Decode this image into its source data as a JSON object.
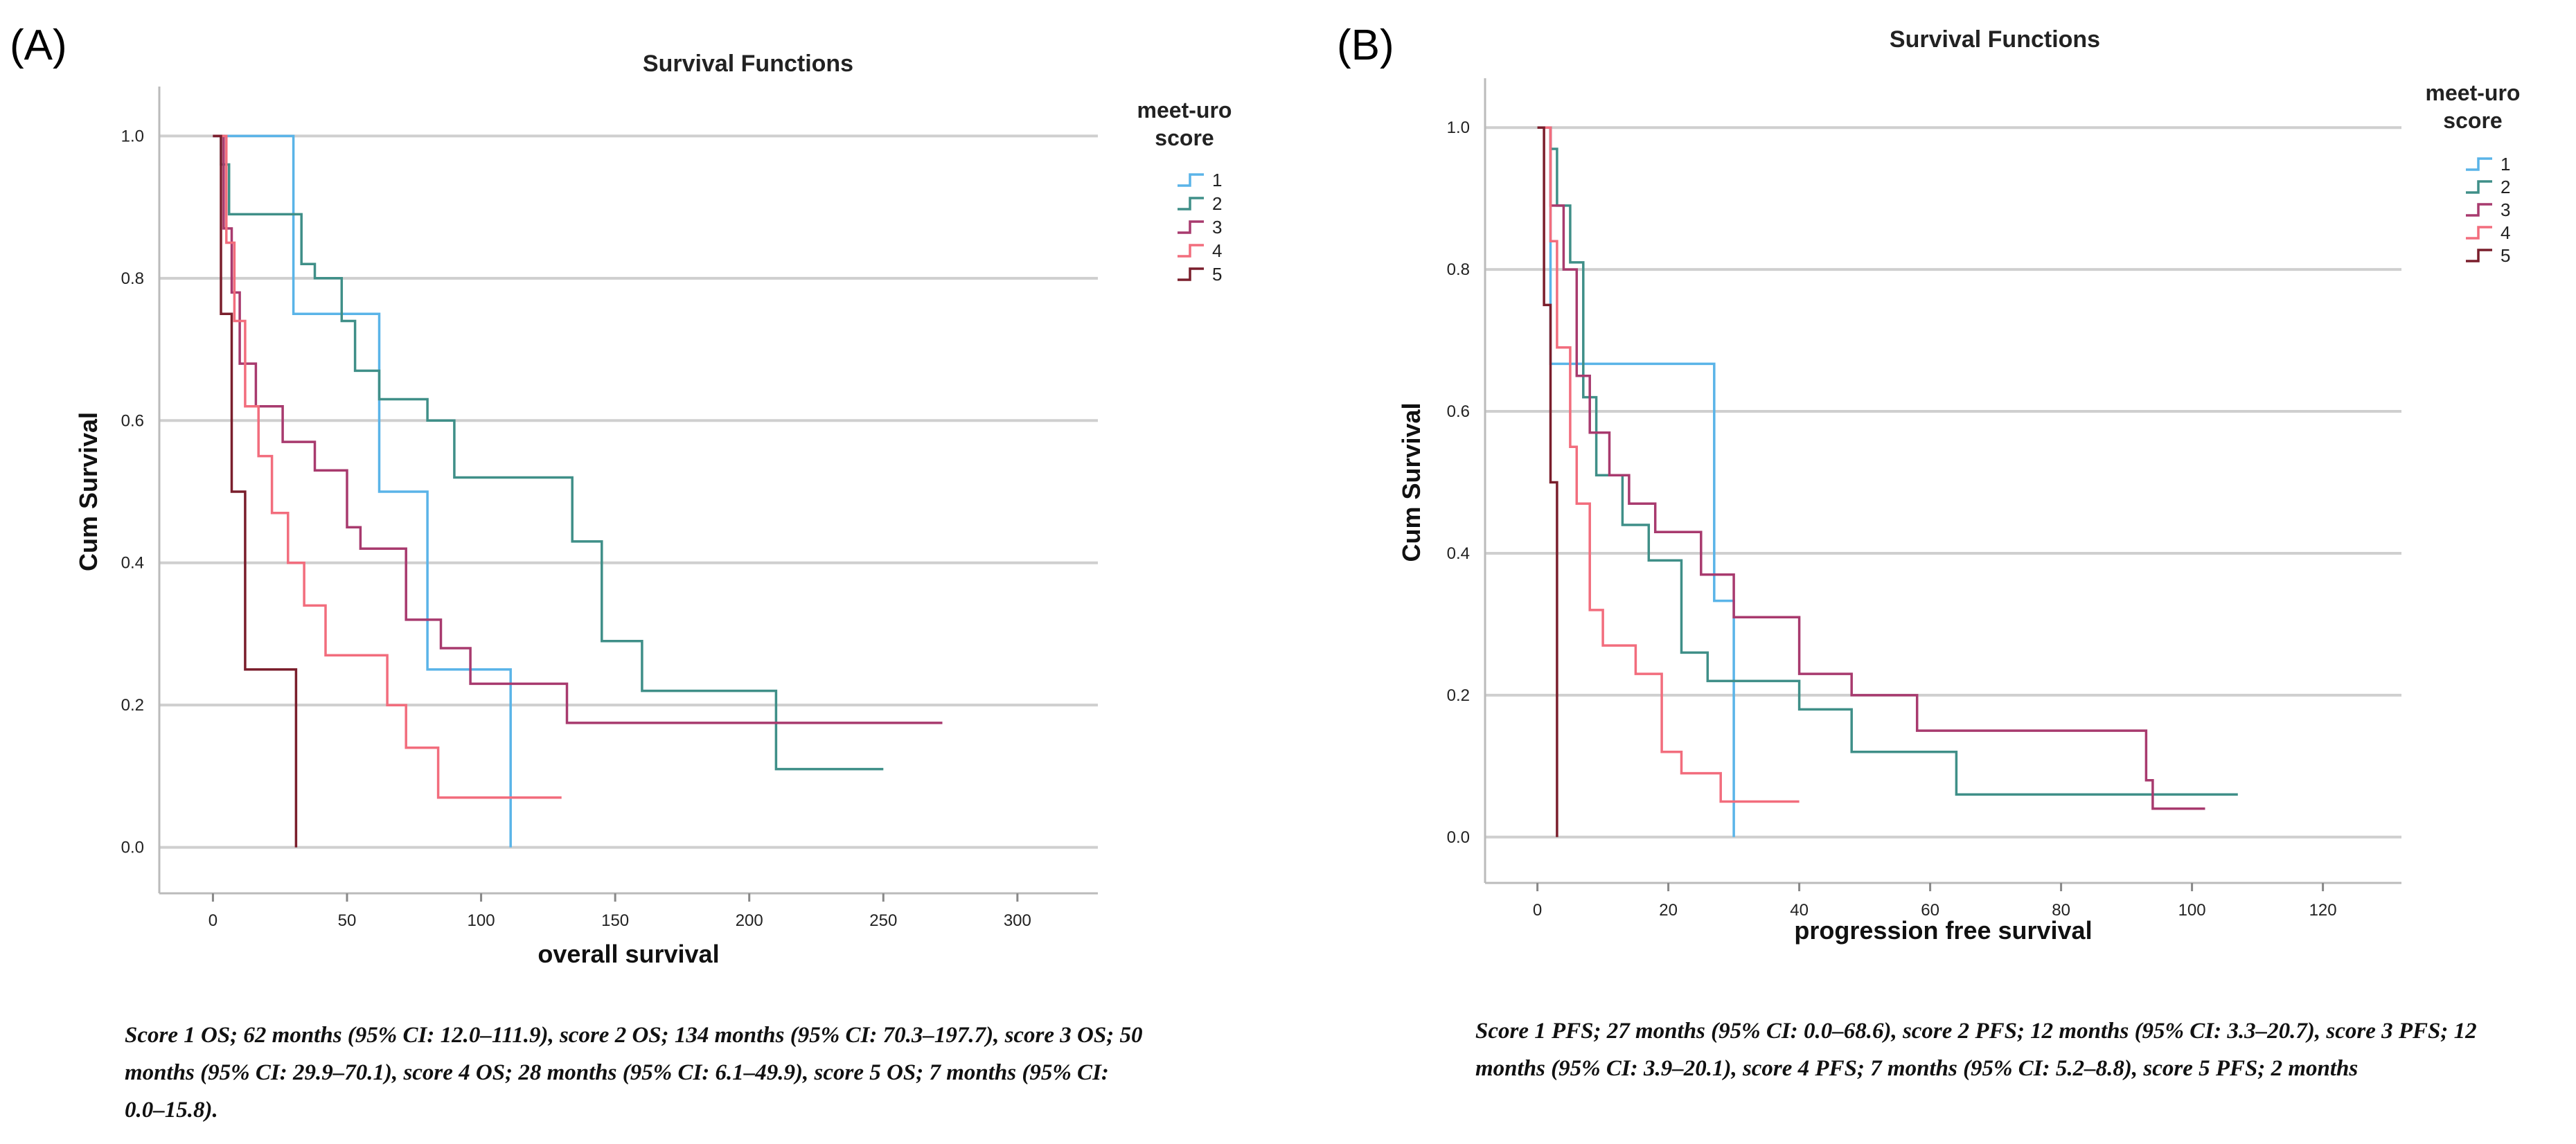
{
  "panels": [
    {
      "letter": "(A)",
      "caption": "Score 1 OS; 62 months (95% CI: 12.0–111.9), score 2 OS; 134 months (95% CI: 70.3–197.7), score 3 OS; 50 months (95% CI: 29.9–70.1), score 4 OS; 28 months (95% CI: 6.1–49.9), score 5 OS; 7 months (95% CI: 0.0–15.8)."
    },
    {
      "letter": "(B)",
      "caption": "Score 1 PFS; 27 months (95% CI: 0.0–68.6), score 2 PFS; 12 months (95% CI: 3.3–20.7), score 3 PFS; 12 months (95% CI: 3.9–20.1), score 4 PFS; 7 months (95% CI: 5.2–8.8), score 5 PFS; 2 months"
    }
  ],
  "colors": {
    "1": "#5ab4e8",
    "2": "#3f8f88",
    "3": "#a83a6e",
    "4": "#f26d7d",
    "5": "#7a1e2c",
    "grid": "#cfcfcf"
  },
  "chart_data": [
    {
      "type": "line",
      "title": "Survival Functions",
      "xlabel": "overall survival",
      "ylabel": "Cum Survival",
      "xlim": [
        -20,
        330
      ],
      "ylim": [
        -0.05,
        1.05
      ],
      "xticks": [
        0,
        50,
        100,
        150,
        200,
        250,
        300
      ],
      "yticks": [
        "0.0",
        "0.2",
        "0.4",
        "0.6",
        "0.8",
        "1.0"
      ],
      "grid": true,
      "legend_title": [
        "meet-uro",
        "score"
      ],
      "series": [
        {
          "name": "1",
          "x": [
            0,
            30,
            30,
            62,
            62,
            80,
            80,
            111,
            111
          ],
          "y": [
            1,
            1,
            0.75,
            0.75,
            0.5,
            0.5,
            0.25,
            0.25,
            0
          ]
        },
        {
          "name": "2",
          "x": [
            0,
            3,
            3,
            6,
            6,
            33,
            33,
            38,
            38,
            48,
            48,
            53,
            53,
            62,
            62,
            80,
            80,
            90,
            90,
            134,
            134,
            145,
            145,
            160,
            160,
            210,
            210,
            250
          ],
          "y": [
            1,
            1,
            0.96,
            0.96,
            0.89,
            0.89,
            0.82,
            0.82,
            0.8,
            0.8,
            0.74,
            0.74,
            0.67,
            0.67,
            0.63,
            0.63,
            0.6,
            0.6,
            0.52,
            0.52,
            0.43,
            0.43,
            0.29,
            0.29,
            0.22,
            0.22,
            0.11,
            0.11
          ]
        },
        {
          "name": "3",
          "x": [
            0,
            4,
            4,
            7,
            7,
            10,
            10,
            16,
            16,
            26,
            26,
            38,
            38,
            50,
            50,
            55,
            55,
            72,
            72,
            85,
            85,
            96,
            96,
            132,
            132,
            272
          ],
          "y": [
            1,
            1,
            0.87,
            0.87,
            0.78,
            0.78,
            0.68,
            0.68,
            0.62,
            0.62,
            0.57,
            0.57,
            0.53,
            0.53,
            0.45,
            0.45,
            0.42,
            0.42,
            0.32,
            0.32,
            0.28,
            0.28,
            0.23,
            0.23,
            0.175,
            0.175
          ]
        },
        {
          "name": "4",
          "x": [
            0,
            5,
            5,
            8,
            8,
            12,
            12,
            17,
            17,
            22,
            22,
            28,
            28,
            34,
            34,
            42,
            42,
            65,
            65,
            72,
            72,
            84,
            84,
            130
          ],
          "y": [
            1,
            1,
            0.85,
            0.85,
            0.74,
            0.74,
            0.62,
            0.62,
            0.55,
            0.55,
            0.47,
            0.47,
            0.4,
            0.4,
            0.34,
            0.34,
            0.27,
            0.27,
            0.2,
            0.2,
            0.14,
            0.14,
            0.07,
            0.07
          ]
        },
        {
          "name": "5",
          "x": [
            0,
            3,
            3,
            7,
            7,
            12,
            12,
            31,
            31
          ],
          "y": [
            1,
            1,
            0.75,
            0.75,
            0.5,
            0.5,
            0.25,
            0.25,
            0
          ]
        }
      ]
    },
    {
      "type": "line",
      "title": "Survival Functions",
      "xlabel": "progression free survival",
      "ylabel": "Cum Survival",
      "xlim": [
        -8,
        132
      ],
      "ylim": [
        -0.05,
        1.05
      ],
      "xticks": [
        0,
        20,
        40,
        60,
        80,
        100,
        120
      ],
      "yticks": [
        "0.0",
        "0.2",
        "0.4",
        "0.6",
        "0.8",
        "1.0"
      ],
      "grid": true,
      "legend_title": [
        "meet-uro",
        "score"
      ],
      "series": [
        {
          "name": "1",
          "x": [
            0,
            2,
            2,
            27,
            27,
            30,
            30
          ],
          "y": [
            1,
            1,
            0.667,
            0.667,
            0.333,
            0.333,
            0
          ]
        },
        {
          "name": "2",
          "x": [
            0,
            2,
            2,
            3,
            3,
            5,
            5,
            7,
            7,
            9,
            9,
            13,
            13,
            17,
            17,
            22,
            22,
            26,
            26,
            40,
            40,
            48,
            48,
            64,
            64,
            107
          ],
          "y": [
            1,
            1,
            0.97,
            0.97,
            0.89,
            0.89,
            0.81,
            0.81,
            0.62,
            0.62,
            0.51,
            0.51,
            0.44,
            0.44,
            0.39,
            0.39,
            0.26,
            0.26,
            0.22,
            0.22,
            0.18,
            0.18,
            0.12,
            0.12,
            0.06,
            0.06
          ]
        },
        {
          "name": "3",
          "x": [
            0,
            2,
            2,
            4,
            4,
            6,
            6,
            8,
            8,
            11,
            11,
            14,
            14,
            18,
            18,
            25,
            25,
            30,
            30,
            40,
            40,
            48,
            48,
            58,
            58,
            93,
            93,
            94,
            94,
            102
          ],
          "y": [
            1,
            1,
            0.89,
            0.89,
            0.8,
            0.8,
            0.65,
            0.65,
            0.57,
            0.57,
            0.51,
            0.51,
            0.47,
            0.47,
            0.43,
            0.43,
            0.37,
            0.37,
            0.31,
            0.31,
            0.23,
            0.23,
            0.2,
            0.2,
            0.15,
            0.15,
            0.08,
            0.08,
            0.04,
            0.04
          ]
        },
        {
          "name": "4",
          "x": [
            0,
            2,
            2,
            3,
            3,
            5,
            5,
            6,
            6,
            8,
            8,
            10,
            10,
            15,
            15,
            19,
            19,
            22,
            22,
            28,
            28,
            40
          ],
          "y": [
            1,
            1,
            0.84,
            0.84,
            0.69,
            0.69,
            0.55,
            0.55,
            0.47,
            0.47,
            0.32,
            0.32,
            0.27,
            0.27,
            0.23,
            0.23,
            0.12,
            0.12,
            0.09,
            0.09,
            0.05,
            0.05
          ]
        },
        {
          "name": "5",
          "x": [
            0,
            1,
            1,
            2,
            2,
            3,
            3
          ],
          "y": [
            1,
            1,
            0.75,
            0.75,
            0.5,
            0.5,
            0
          ]
        }
      ]
    }
  ]
}
